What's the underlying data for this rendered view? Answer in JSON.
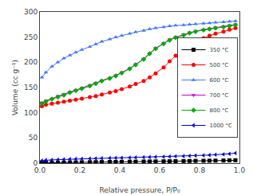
{
  "chart_data": {
    "type": "line",
    "xlabel": "Relative pressure, P/P₀",
    "ylabel": "Volume (cc g⁻¹)",
    "xlim": [
      0.0,
      1.0
    ],
    "ylim": [
      0,
      300
    ],
    "xticks": [
      {
        "value": 0.0,
        "label": "0.0"
      },
      0.2,
      0.4,
      0.6,
      0.8,
      {
        "value": 1.0,
        "label": "1.0"
      }
    ],
    "yticks": [
      0,
      50,
      100,
      150,
      200,
      250,
      300
    ],
    "grid": false,
    "legend": "center right",
    "x": [
      0.01,
      0.03,
      0.06,
      0.09,
      0.12,
      0.15,
      0.18,
      0.21,
      0.25,
      0.28,
      0.31,
      0.35,
      0.38,
      0.41,
      0.45,
      0.48,
      0.52,
      0.55,
      0.58,
      0.62,
      0.65,
      0.68,
      0.72,
      0.75,
      0.78,
      0.82,
      0.85,
      0.88,
      0.92,
      0.95,
      0.98
    ],
    "series": [
      {
        "name": "350 °C",
        "color": "#000000",
        "marker": "square",
        "values": [
          0.5,
          0.7,
          0.9,
          1.0,
          1.2,
          1.4,
          1.5,
          1.7,
          1.9,
          2.0,
          2.2,
          2.4,
          2.5,
          2.7,
          2.9,
          3.0,
          3.2,
          3.3,
          3.5,
          3.7,
          3.8,
          4.0,
          4.2,
          4.3,
          4.5,
          4.7,
          4.9,
          5.0,
          5.2,
          5.5,
          5.8
        ]
      },
      {
        "name": "500 °C",
        "color": "#ff0000",
        "marker": "circle",
        "values": [
          113,
          116,
          118,
          120,
          122,
          124,
          126,
          128,
          131,
          133,
          136,
          140,
          143,
          147,
          152,
          157,
          163,
          170,
          178,
          190,
          202,
          213,
          225,
          233,
          240,
          248,
          253,
          257,
          261,
          265,
          268
        ]
      },
      {
        "name": "600 °C",
        "color": "#4477ff",
        "marker": "triangle-up",
        "values": [
          170,
          180,
          192,
          200,
          208,
          214,
          220,
          225,
          231,
          236,
          241,
          246,
          250,
          253,
          257,
          260,
          263,
          266,
          268,
          270,
          272,
          273,
          274,
          275,
          276,
          277,
          278,
          279,
          280,
          281,
          282
        ]
      },
      {
        "name": "700 °C",
        "color": "#cc00cc",
        "marker": "triangle-down",
        "values": [
          120,
          124,
          128,
          133,
          137,
          141,
          145,
          149,
          154,
          159,
          164,
          169,
          174,
          180,
          188,
          196,
          207,
          218,
          228,
          238,
          245,
          250,
          255,
          259,
          262,
          265,
          267,
          269,
          271,
          273,
          275
        ]
      },
      {
        "name": "800 °C",
        "color": "#00aa00",
        "marker": "diamond",
        "values": [
          118,
          122,
          127,
          131,
          135,
          140,
          144,
          148,
          153,
          158,
          163,
          168,
          173,
          179,
          187,
          195,
          206,
          217,
          227,
          237,
          244,
          249,
          254,
          258,
          261,
          264,
          266,
          268,
          270,
          272,
          274
        ]
      },
      {
        "name": "1000 °C",
        "color": "#0000dd",
        "marker": "triangle-left",
        "values": [
          5,
          6,
          6.5,
          7,
          7.5,
          8,
          8.3,
          8.6,
          9,
          9.3,
          9.6,
          10,
          10.3,
          10.6,
          11,
          11.3,
          11.7,
          12,
          12.4,
          12.8,
          13.2,
          13.6,
          14,
          14.5,
          15,
          15.5,
          16,
          16.8,
          17.5,
          18.5,
          20
        ]
      }
    ]
  }
}
